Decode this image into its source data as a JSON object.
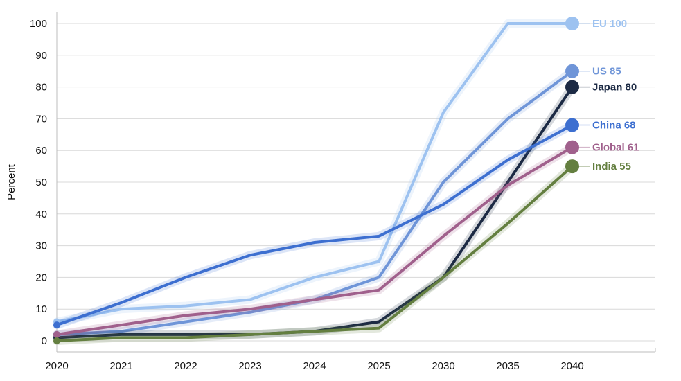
{
  "chart_data": {
    "type": "line",
    "title": "",
    "xlabel": "",
    "ylabel": "Percent",
    "categories": [
      "2020",
      "2021",
      "2022",
      "2023",
      "2024",
      "2025",
      "2030",
      "2035",
      "2040"
    ],
    "ylim": [
      0,
      100
    ],
    "yticks": [
      0,
      10,
      20,
      30,
      40,
      50,
      60,
      70,
      80,
      90,
      100
    ],
    "grid": true,
    "legend": "end-of-line labels",
    "series": [
      {
        "name": "EU",
        "end_value": "100",
        "color": "#9dc2f0",
        "values": [
          6,
          10,
          11,
          13,
          20,
          25,
          72,
          100,
          100
        ]
      },
      {
        "name": "US",
        "end_value": "85",
        "color": "#6f95d8",
        "values": [
          2,
          3,
          6,
          9,
          13,
          20,
          50,
          70,
          85
        ]
      },
      {
        "name": "Japan",
        "end_value": "80",
        "color": "#1c2a44",
        "values": [
          1,
          2,
          2,
          2,
          3,
          6,
          20,
          50,
          80
        ]
      },
      {
        "name": "China",
        "end_value": "68",
        "color": "#3d6fd0",
        "values": [
          5,
          12,
          20,
          27,
          31,
          33,
          43,
          57,
          68
        ]
      },
      {
        "name": "Global",
        "end_value": "61",
        "color": "#a0608c",
        "values": [
          2,
          5,
          8,
          10,
          13,
          16,
          33,
          49,
          61
        ]
      },
      {
        "name": "India",
        "end_value": "55",
        "color": "#647f40",
        "values": [
          0,
          1,
          1,
          2,
          3,
          4,
          20,
          37,
          55
        ]
      }
    ]
  }
}
